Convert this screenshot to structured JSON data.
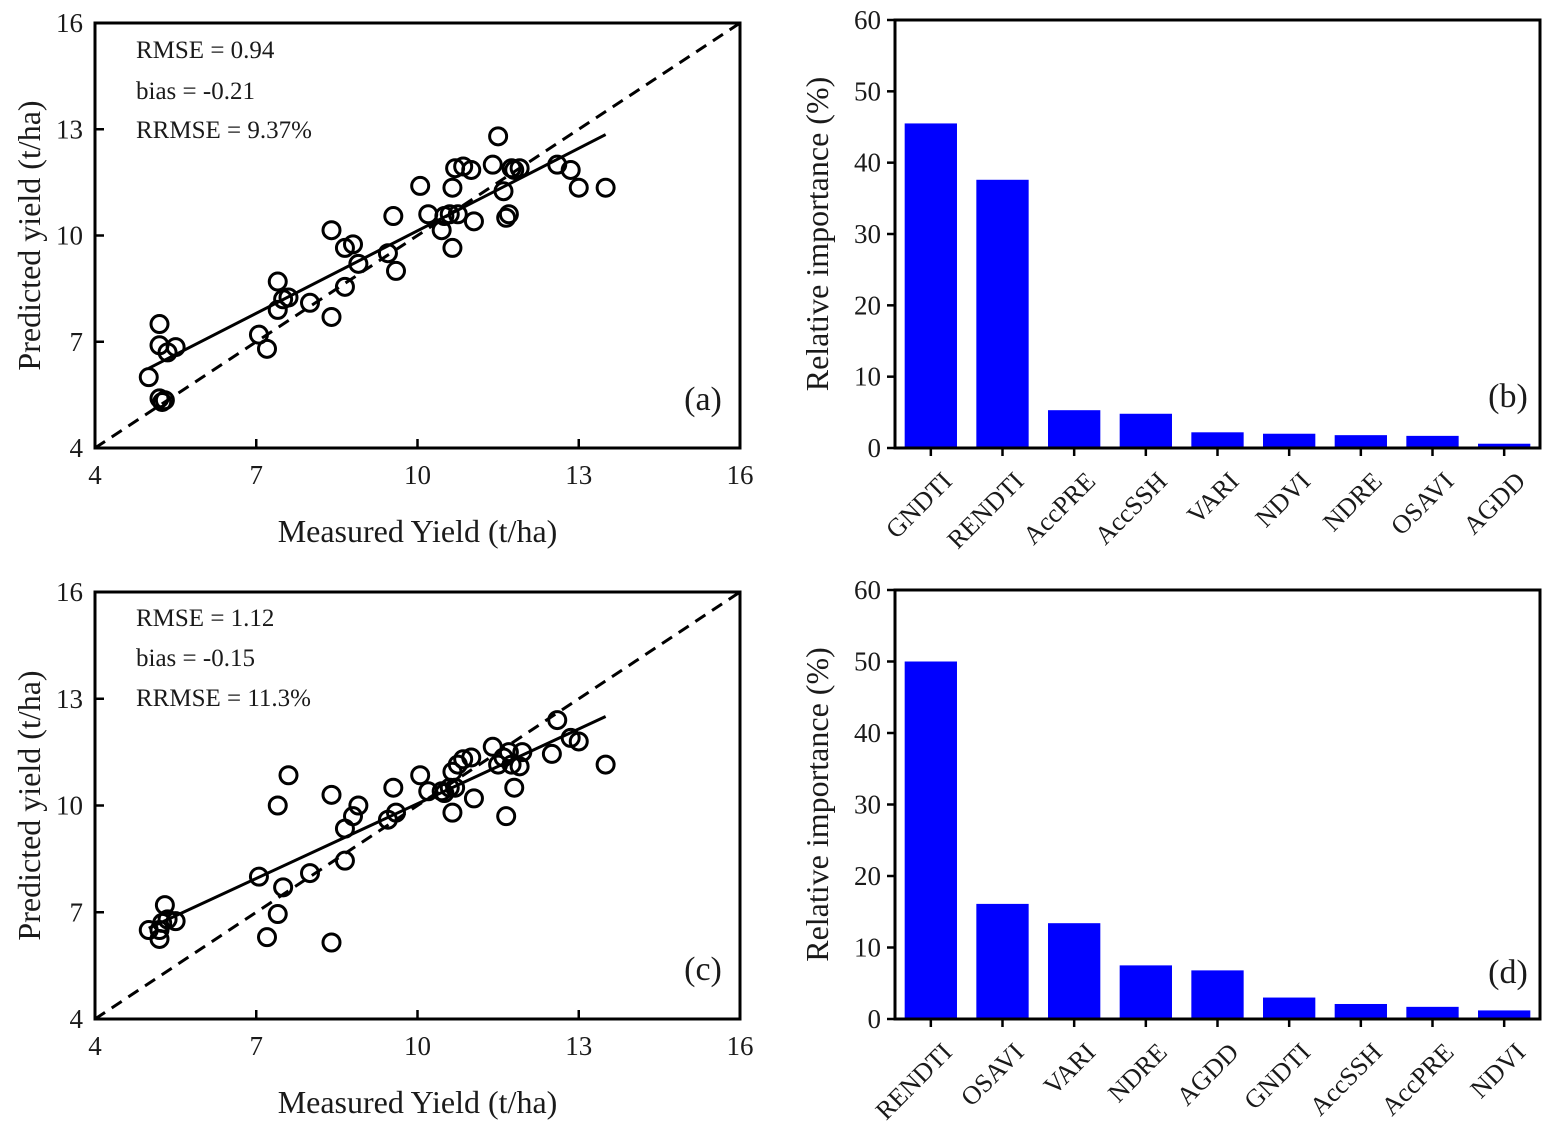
{
  "chart_data": [
    {
      "panel": "(a)",
      "type": "scatter",
      "xlabel": "Measured Yield (t/ha)",
      "ylabel": "Predicted yield (t/ha)",
      "xlim": [
        4,
        16
      ],
      "ylim": [
        4,
        16
      ],
      "xticks": [
        4,
        7,
        10,
        13,
        16
      ],
      "yticks": [
        4,
        7,
        10,
        13,
        16
      ],
      "stats": [
        "RMSE = 0.94",
        "bias = -0.21",
        "RRMSE = 9.37%"
      ],
      "one_to_one_line": true,
      "fit_line": [
        [
          5.0,
          6.25
        ],
        [
          13.5,
          12.85
        ]
      ],
      "points": [
        [
          5.0,
          6.0
        ],
        [
          5.2,
          5.4
        ],
        [
          5.25,
          5.3
        ],
        [
          5.3,
          5.35
        ],
        [
          5.2,
          6.9
        ],
        [
          5.2,
          7.5
        ],
        [
          5.35,
          6.7
        ],
        [
          5.5,
          6.85
        ],
        [
          7.05,
          7.2
        ],
        [
          7.2,
          6.8
        ],
        [
          7.4,
          8.7
        ],
        [
          7.4,
          7.9
        ],
        [
          7.5,
          8.2
        ],
        [
          7.6,
          8.25
        ],
        [
          8.0,
          8.1
        ],
        [
          8.4,
          10.15
        ],
        [
          8.4,
          7.7
        ],
        [
          8.65,
          8.55
        ],
        [
          8.65,
          9.65
        ],
        [
          8.8,
          9.75
        ],
        [
          8.9,
          9.2
        ],
        [
          9.45,
          9.5
        ],
        [
          9.55,
          10.55
        ],
        [
          9.6,
          9.0
        ],
        [
          10.05,
          11.4
        ],
        [
          10.2,
          10.6
        ],
        [
          10.45,
          10.15
        ],
        [
          10.5,
          10.55
        ],
        [
          10.6,
          10.6
        ],
        [
          10.65,
          9.65
        ],
        [
          10.65,
          11.35
        ],
        [
          10.7,
          11.9
        ],
        [
          10.75,
          10.6
        ],
        [
          10.85,
          11.95
        ],
        [
          11.0,
          11.85
        ],
        [
          11.05,
          10.4
        ],
        [
          11.4,
          12.0
        ],
        [
          11.5,
          12.8
        ],
        [
          11.6,
          11.25
        ],
        [
          11.65,
          10.5
        ],
        [
          11.7,
          10.6
        ],
        [
          11.75,
          11.9
        ],
        [
          11.8,
          11.85
        ],
        [
          11.9,
          11.9
        ],
        [
          12.6,
          12.0
        ],
        [
          12.85,
          11.85
        ],
        [
          13.0,
          11.35
        ],
        [
          13.5,
          11.35
        ]
      ]
    },
    {
      "panel": "(b)",
      "type": "bar",
      "ylabel": "Relative importance (%)",
      "ylim": [
        0,
        60
      ],
      "yticks": [
        0,
        10,
        20,
        30,
        40,
        50,
        60
      ],
      "color": "#0000ff",
      "categories": [
        "GNDTI",
        "RENDTI",
        "AccPRE",
        "AccSSH",
        "VARI",
        "NDVI",
        "NDRE",
        "OSAVI",
        "AGDD"
      ],
      "values": [
        45.5,
        37.6,
        5.3,
        4.8,
        2.2,
        2.0,
        1.8,
        1.7,
        0.6
      ]
    },
    {
      "panel": "(c)",
      "type": "scatter",
      "xlabel": "Measured Yield (t/ha)",
      "ylabel": "Predicted yield (t/ha)",
      "xlim": [
        4,
        16
      ],
      "ylim": [
        4,
        16
      ],
      "xticks": [
        4,
        7,
        10,
        13,
        16
      ],
      "yticks": [
        4,
        7,
        10,
        13,
        16
      ],
      "stats": [
        "RMSE = 1.12",
        "bias = -0.15",
        "RRMSE = 11.3%"
      ],
      "one_to_one_line": true,
      "fit_line": [
        [
          5.0,
          6.55
        ],
        [
          13.5,
          12.5
        ]
      ],
      "points": [
        [
          5.0,
          6.5
        ],
        [
          5.2,
          6.25
        ],
        [
          5.2,
          6.5
        ],
        [
          5.25,
          6.7
        ],
        [
          5.3,
          7.2
        ],
        [
          5.35,
          6.8
        ],
        [
          5.5,
          6.75
        ],
        [
          7.05,
          8.0
        ],
        [
          7.2,
          6.3
        ],
        [
          7.4,
          10.0
        ],
        [
          7.4,
          6.95
        ],
        [
          7.5,
          7.7
        ],
        [
          7.6,
          10.85
        ],
        [
          8.0,
          8.1
        ],
        [
          8.4,
          10.3
        ],
        [
          8.4,
          6.15
        ],
        [
          8.65,
          9.35
        ],
        [
          8.65,
          8.45
        ],
        [
          8.8,
          9.7
        ],
        [
          8.9,
          10.0
        ],
        [
          9.45,
          9.6
        ],
        [
          9.55,
          10.5
        ],
        [
          9.6,
          9.8
        ],
        [
          10.05,
          10.85
        ],
        [
          10.2,
          10.4
        ],
        [
          10.45,
          10.4
        ],
        [
          10.5,
          10.35
        ],
        [
          10.6,
          10.5
        ],
        [
          10.65,
          9.8
        ],
        [
          10.65,
          10.95
        ],
        [
          10.7,
          10.5
        ],
        [
          10.75,
          11.15
        ],
        [
          10.85,
          11.3
        ],
        [
          11.0,
          11.35
        ],
        [
          11.05,
          10.2
        ],
        [
          11.4,
          11.65
        ],
        [
          11.5,
          11.15
        ],
        [
          11.6,
          11.35
        ],
        [
          11.65,
          9.7
        ],
        [
          11.7,
          11.5
        ],
        [
          11.75,
          11.15
        ],
        [
          11.8,
          10.5
        ],
        [
          11.9,
          11.1
        ],
        [
          11.95,
          11.5
        ],
        [
          12.5,
          11.45
        ],
        [
          12.6,
          12.4
        ],
        [
          12.85,
          11.9
        ],
        [
          13.0,
          11.8
        ],
        [
          13.5,
          11.15
        ]
      ]
    },
    {
      "panel": "(d)",
      "type": "bar",
      "ylabel": "Relative importance (%)",
      "ylim": [
        0,
        60
      ],
      "yticks": [
        0,
        10,
        20,
        30,
        40,
        50,
        60
      ],
      "color": "#0000ff",
      "categories": [
        "RENDTI",
        "OSAVI",
        "VARI",
        "NDRE",
        "AGDD",
        "GNDTI",
        "AccSSH",
        "AccPRE",
        "NDVI"
      ],
      "values": [
        50.0,
        16.1,
        13.4,
        7.5,
        6.8,
        3.0,
        2.1,
        1.7,
        1.2
      ]
    }
  ]
}
